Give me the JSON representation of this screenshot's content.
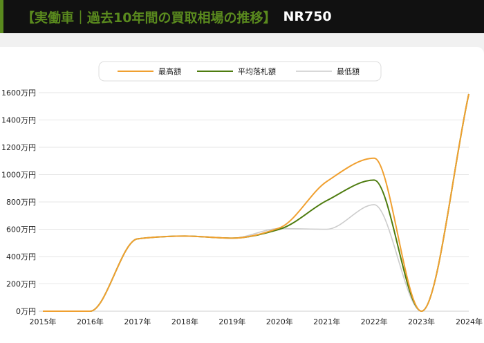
{
  "header": {
    "title": "【実働車｜過去10年間の買取相場の推移】",
    "model": "NR750"
  },
  "colors": {
    "accent": "#5a8a1e",
    "max": "#f0a030",
    "avg": "#4e7c0f",
    "min": "#cccccc"
  },
  "chart_data": {
    "type": "line",
    "categories": [
      "2015年",
      "2016年",
      "2017年",
      "2018年",
      "2019年",
      "2020年",
      "2021年",
      "2022年",
      "2023年",
      "2024年"
    ],
    "y_tick_labels": [
      "0万円",
      "200万円",
      "400万円",
      "600万円",
      "800万円",
      "1000万円",
      "1200万円",
      "1400万円",
      "1600万円"
    ],
    "yunit": "万円",
    "ylim": [
      0,
      1600
    ],
    "grid": true,
    "legend_position": "top-center",
    "series": [
      {
        "name": "最高額",
        "color": "#f0a030",
        "values": [
          0,
          0,
          530,
          550,
          535,
          610,
          950,
          1120,
          0,
          1590
        ]
      },
      {
        "name": "平均落札額",
        "color": "#4e7c0f",
        "values": [
          0,
          0,
          530,
          550,
          535,
          600,
          810,
          960,
          0,
          1590
        ]
      },
      {
        "name": "最低額",
        "color": "#cccccc",
        "values": [
          0,
          0,
          530,
          550,
          535,
          605,
          600,
          780,
          0,
          1590
        ]
      }
    ]
  }
}
